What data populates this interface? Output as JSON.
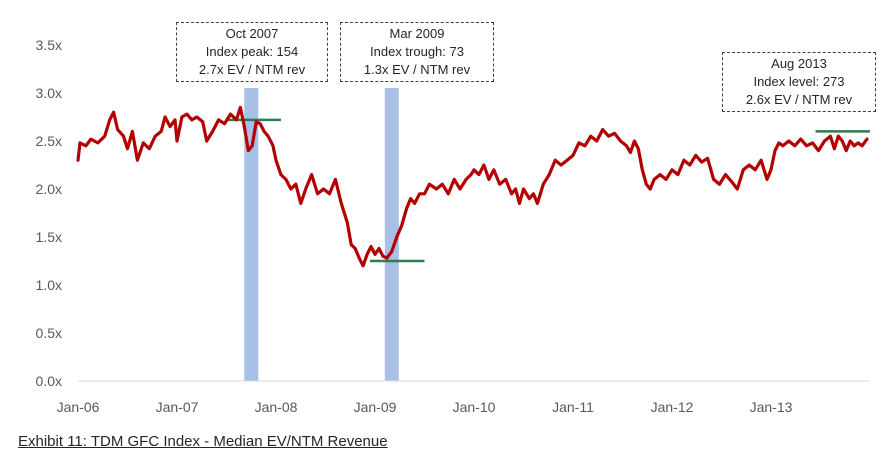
{
  "chart_data": {
    "type": "line",
    "title": "",
    "xlabel": "",
    "ylabel": "",
    "ylim": [
      0,
      3.5
    ],
    "yticks": [
      0,
      0.5,
      1.0,
      1.5,
      2.0,
      2.5,
      3.0,
      3.5
    ],
    "ytick_labels": [
      "0.0x",
      "0.5x",
      "1.0x",
      "1.5x",
      "2.0x",
      "2.5x",
      "3.0x",
      "3.5x"
    ],
    "xlim": [
      2006.0,
      2014.0
    ],
    "xticks": [
      2006.0,
      2007.0,
      2008.0,
      2009.0,
      2010.0,
      2011.0,
      2012.0,
      2013.0
    ],
    "xtick_labels": [
      "Jan-06",
      "Jan-07",
      "Jan-08",
      "Jan-09",
      "Jan-10",
      "Jan-11",
      "Jan-12",
      "Jan-13"
    ],
    "series": [
      {
        "name": "Median EV/NTM Revenue",
        "color": "#b30000",
        "points": [
          [
            2006.0,
            2.3
          ],
          [
            2006.02,
            2.48
          ],
          [
            2006.08,
            2.45
          ],
          [
            2006.13,
            2.52
          ],
          [
            2006.2,
            2.48
          ],
          [
            2006.27,
            2.55
          ],
          [
            2006.32,
            2.72
          ],
          [
            2006.36,
            2.8
          ],
          [
            2006.4,
            2.62
          ],
          [
            2006.46,
            2.55
          ],
          [
            2006.5,
            2.42
          ],
          [
            2006.55,
            2.6
          ],
          [
            2006.6,
            2.3
          ],
          [
            2006.66,
            2.48
          ],
          [
            2006.72,
            2.42
          ],
          [
            2006.78,
            2.55
          ],
          [
            2006.84,
            2.6
          ],
          [
            2006.88,
            2.75
          ],
          [
            2006.93,
            2.65
          ],
          [
            2006.98,
            2.72
          ],
          [
            2007.0,
            2.5
          ],
          [
            2007.05,
            2.75
          ],
          [
            2007.1,
            2.78
          ],
          [
            2007.15,
            2.72
          ],
          [
            2007.2,
            2.75
          ],
          [
            2007.26,
            2.7
          ],
          [
            2007.3,
            2.5
          ],
          [
            2007.36,
            2.6
          ],
          [
            2007.42,
            2.72
          ],
          [
            2007.48,
            2.68
          ],
          [
            2007.54,
            2.78
          ],
          [
            2007.6,
            2.72
          ],
          [
            2007.64,
            2.85
          ],
          [
            2007.68,
            2.65
          ],
          [
            2007.72,
            2.4
          ],
          [
            2007.76,
            2.45
          ],
          [
            2007.8,
            2.7
          ],
          [
            2007.84,
            2.68
          ],
          [
            2007.88,
            2.6
          ],
          [
            2007.92,
            2.55
          ],
          [
            2007.97,
            2.45
          ],
          [
            2008.0,
            2.3
          ],
          [
            2008.05,
            2.15
          ],
          [
            2008.1,
            2.1
          ],
          [
            2008.15,
            2.0
          ],
          [
            2008.2,
            2.05
          ],
          [
            2008.25,
            1.85
          ],
          [
            2008.3,
            2.0
          ],
          [
            2008.36,
            2.15
          ],
          [
            2008.42,
            1.95
          ],
          [
            2008.48,
            2.0
          ],
          [
            2008.54,
            1.95
          ],
          [
            2008.6,
            2.1
          ],
          [
            2008.66,
            1.85
          ],
          [
            2008.72,
            1.65
          ],
          [
            2008.76,
            1.42
          ],
          [
            2008.8,
            1.38
          ],
          [
            2008.84,
            1.28
          ],
          [
            2008.88,
            1.2
          ],
          [
            2008.92,
            1.32
          ],
          [
            2008.96,
            1.4
          ],
          [
            2009.0,
            1.32
          ],
          [
            2009.04,
            1.38
          ],
          [
            2009.08,
            1.3
          ],
          [
            2009.12,
            1.28
          ],
          [
            2009.17,
            1.35
          ],
          [
            2009.22,
            1.5
          ],
          [
            2009.27,
            1.62
          ],
          [
            2009.32,
            1.8
          ],
          [
            2009.36,
            1.9
          ],
          [
            2009.4,
            1.85
          ],
          [
            2009.45,
            1.95
          ],
          [
            2009.5,
            1.95
          ],
          [
            2009.55,
            2.05
          ],
          [
            2009.62,
            2.0
          ],
          [
            2009.68,
            2.05
          ],
          [
            2009.74,
            1.95
          ],
          [
            2009.8,
            2.1
          ],
          [
            2009.86,
            2.0
          ],
          [
            2009.92,
            2.1
          ],
          [
            2009.97,
            2.15
          ],
          [
            2010.0,
            2.2
          ],
          [
            2010.05,
            2.15
          ],
          [
            2010.1,
            2.25
          ],
          [
            2010.15,
            2.1
          ],
          [
            2010.2,
            2.2
          ],
          [
            2010.26,
            2.05
          ],
          [
            2010.32,
            2.1
          ],
          [
            2010.38,
            1.95
          ],
          [
            2010.42,
            2.0
          ],
          [
            2010.46,
            1.85
          ],
          [
            2010.5,
            2.0
          ],
          [
            2010.56,
            1.9
          ],
          [
            2010.6,
            1.95
          ],
          [
            2010.64,
            1.85
          ],
          [
            2010.7,
            2.05
          ],
          [
            2010.76,
            2.15
          ],
          [
            2010.82,
            2.3
          ],
          [
            2010.88,
            2.25
          ],
          [
            2010.94,
            2.3
          ],
          [
            2011.0,
            2.35
          ],
          [
            2011.06,
            2.48
          ],
          [
            2011.12,
            2.45
          ],
          [
            2011.18,
            2.55
          ],
          [
            2011.24,
            2.5
          ],
          [
            2011.3,
            2.62
          ],
          [
            2011.36,
            2.55
          ],
          [
            2011.42,
            2.58
          ],
          [
            2011.48,
            2.5
          ],
          [
            2011.54,
            2.45
          ],
          [
            2011.58,
            2.38
          ],
          [
            2011.62,
            2.5
          ],
          [
            2011.66,
            2.42
          ],
          [
            2011.7,
            2.2
          ],
          [
            2011.74,
            2.05
          ],
          [
            2011.78,
            2.0
          ],
          [
            2011.82,
            2.1
          ],
          [
            2011.88,
            2.15
          ],
          [
            2011.94,
            2.1
          ],
          [
            2012.0,
            2.2
          ],
          [
            2012.06,
            2.15
          ],
          [
            2012.12,
            2.3
          ],
          [
            2012.18,
            2.25
          ],
          [
            2012.24,
            2.35
          ],
          [
            2012.3,
            2.28
          ],
          [
            2012.36,
            2.32
          ],
          [
            2012.42,
            2.1
          ],
          [
            2012.48,
            2.05
          ],
          [
            2012.54,
            2.15
          ],
          [
            2012.6,
            2.08
          ],
          [
            2012.66,
            2.0
          ],
          [
            2012.72,
            2.2
          ],
          [
            2012.78,
            2.25
          ],
          [
            2012.84,
            2.2
          ],
          [
            2012.9,
            2.3
          ],
          [
            2012.96,
            2.1
          ],
          [
            2013.0,
            2.2
          ],
          [
            2013.04,
            2.4
          ],
          [
            2013.08,
            2.48
          ],
          [
            2013.12,
            2.45
          ],
          [
            2013.18,
            2.5
          ],
          [
            2013.24,
            2.45
          ],
          [
            2013.3,
            2.52
          ],
          [
            2013.36,
            2.45
          ],
          [
            2013.42,
            2.48
          ],
          [
            2013.48,
            2.4
          ],
          [
            2013.54,
            2.5
          ],
          [
            2013.6,
            2.55
          ],
          [
            2013.64,
            2.42
          ],
          [
            2013.68,
            2.55
          ],
          [
            2013.72,
            2.5
          ],
          [
            2013.76,
            2.4
          ],
          [
            2013.8,
            2.5
          ],
          [
            2013.84,
            2.45
          ],
          [
            2013.88,
            2.48
          ],
          [
            2013.92,
            2.45
          ],
          [
            2013.97,
            2.52
          ]
        ]
      }
    ],
    "recession_bands": [
      {
        "x": 2007.75,
        "label": "Oct 2007"
      },
      {
        "x": 2009.17,
        "label": "Mar 2009"
      }
    ],
    "reference_lines": [
      {
        "x0": 2007.5,
        "x1": 2008.05,
        "y": 2.72,
        "color": "#2e7d4f"
      },
      {
        "x0": 2008.95,
        "x1": 2009.5,
        "y": 1.25,
        "color": "#2e7d4f"
      },
      {
        "x0": 2013.45,
        "x1": 2014.0,
        "y": 2.6,
        "color": "#2e7d4f"
      }
    ],
    "annotations": [
      {
        "lines": [
          "Oct 2007",
          "Index peak: 154",
          "2.7x EV / NTM rev"
        ]
      },
      {
        "lines": [
          "Mar 2009",
          "Index trough: 73",
          "1.3x EV / NTM rev"
        ]
      },
      {
        "lines": [
          "Aug 2013",
          "Index level: 273",
          "2.6x EV / NTM rev"
        ]
      }
    ],
    "band_color": "#a8bfe6",
    "grid": false,
    "legend": "none"
  },
  "caption": "Exhibit 11: TDM GFC Index - Median EV/NTM Revenue"
}
